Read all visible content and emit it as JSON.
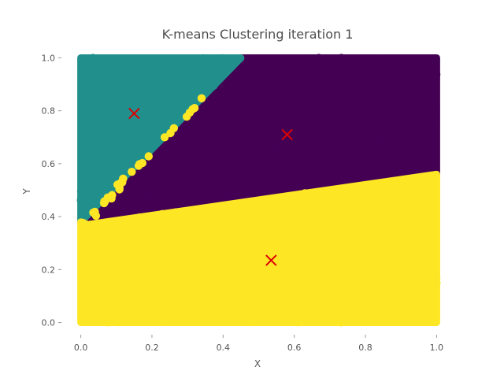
{
  "chart_data": {
    "type": "scatter",
    "title": "K-means Clustering iteration 1",
    "xlabel": "X",
    "ylabel": "Y",
    "xlim": [
      -0.05,
      1.05
    ],
    "ylim": [
      -0.04,
      1.04
    ],
    "xticks": [
      "0.0",
      "0.2",
      "0.4",
      "0.6",
      "0.8",
      "1.0"
    ],
    "xtick_values": [
      0.0,
      0.2,
      0.4,
      0.6,
      0.8,
      1.0
    ],
    "yticks": [
      "0.0",
      "0.2",
      "0.4",
      "0.6",
      "0.8",
      "1.0"
    ],
    "ytick_values": [
      0.0,
      0.2,
      0.4,
      0.6,
      0.8,
      1.0
    ],
    "grid": false,
    "num_points": 3000,
    "clusters": [
      {
        "color": "#440154",
        "region": "upper-right",
        "boundary_polygon": [
          [
            0.02,
            0.37
          ],
          [
            0.45,
            1.0
          ],
          [
            1.0,
            1.0
          ],
          [
            1.0,
            0.56
          ],
          [
            0.02,
            0.37
          ]
        ]
      },
      {
        "color": "#21908d",
        "region": "upper-left",
        "boundary_polygon": [
          [
            0.0,
            0.38
          ],
          [
            0.0,
            1.0
          ],
          [
            0.45,
            1.0
          ],
          [
            0.0,
            0.38
          ]
        ]
      },
      {
        "color": "#fde725",
        "region": "bottom",
        "boundary_polygon": [
          [
            0.0,
            0.0
          ],
          [
            1.0,
            0.0
          ],
          [
            1.0,
            0.56
          ],
          [
            0.02,
            0.37
          ],
          [
            0.0,
            0.38
          ]
        ]
      }
    ],
    "centroids": [
      {
        "x": 0.15,
        "y": 0.79,
        "color": "#dd0000",
        "marker": "x"
      },
      {
        "x": 0.58,
        "y": 0.71,
        "color": "#dd0000",
        "marker": "x"
      },
      {
        "x": 0.535,
        "y": 0.235,
        "color": "#dd0000",
        "marker": "x"
      }
    ]
  }
}
